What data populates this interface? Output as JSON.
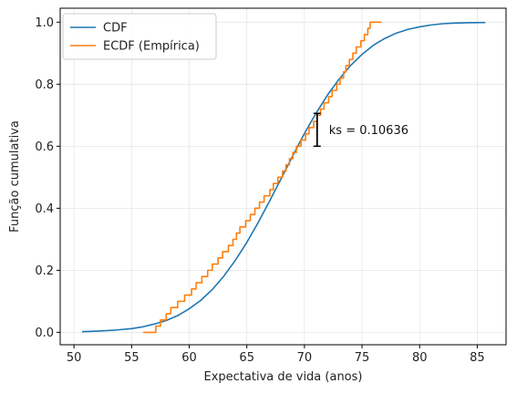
{
  "chart_data": {
    "type": "line",
    "xlabel": "Expectativa de vida (anos)",
    "ylabel": "Função cumulativa",
    "xlim": [
      48.8,
      87.5
    ],
    "ylim": [
      -0.04,
      1.045
    ],
    "xticks": [
      50,
      55,
      60,
      65,
      70,
      75,
      80,
      85
    ],
    "yticks": [
      0.0,
      0.2,
      0.4,
      0.6,
      0.8,
      1.0
    ],
    "x_tick_labels": [
      "50",
      "55",
      "60",
      "65",
      "70",
      "75",
      "80",
      "85"
    ],
    "y_tick_labels": [
      "0.0",
      "0.2",
      "0.4",
      "0.6",
      "0.8",
      "1.0"
    ],
    "grid": true,
    "legend_position": "top-left",
    "series": [
      {
        "name": "CDF",
        "kind": "line",
        "color": "#1f77b4",
        "x": [
          50.7,
          52,
          53.5,
          55,
          56,
          57,
          58,
          59,
          60,
          61,
          62,
          63,
          64,
          65,
          66,
          67,
          68,
          69,
          70,
          71,
          72,
          73,
          74,
          75,
          76,
          77,
          78,
          79,
          80,
          81,
          82,
          83,
          84,
          85.7
        ],
        "y": [
          0.002,
          0.004,
          0.007,
          0.012,
          0.018,
          0.027,
          0.038,
          0.054,
          0.076,
          0.103,
          0.138,
          0.181,
          0.232,
          0.29,
          0.355,
          0.425,
          0.497,
          0.57,
          0.641,
          0.706,
          0.765,
          0.816,
          0.86,
          0.896,
          0.926,
          0.948,
          0.965,
          0.977,
          0.985,
          0.991,
          0.995,
          0.997,
          0.998,
          0.999
        ]
      },
      {
        "name": "ECDF (Empírica)",
        "kind": "step",
        "color": "#ff7f0e",
        "x": [
          56,
          57.1,
          57.5,
          58,
          58.4,
          59,
          59.6,
          60.2,
          60.6,
          61.1,
          61.6,
          62,
          62.5,
          62.9,
          63.4,
          63.8,
          64.1,
          64.4,
          64.9,
          65.3,
          65.7,
          66.1,
          66.5,
          67,
          67.3,
          67.7,
          68.1,
          68.4,
          68.7,
          69,
          69.3,
          69.7,
          70.1,
          70.4,
          70.8,
          71.1,
          71.4,
          71.7,
          72.1,
          72.4,
          72.8,
          73.1,
          73.4,
          73.6,
          73.9,
          74.2,
          74.5,
          74.9,
          75.2,
          75.5,
          75.7,
          76.7
        ],
        "y": [
          0.0,
          0.02,
          0.04,
          0.06,
          0.08,
          0.1,
          0.12,
          0.14,
          0.16,
          0.18,
          0.2,
          0.22,
          0.24,
          0.26,
          0.28,
          0.3,
          0.32,
          0.34,
          0.36,
          0.38,
          0.4,
          0.42,
          0.44,
          0.46,
          0.48,
          0.5,
          0.52,
          0.54,
          0.56,
          0.58,
          0.6,
          0.62,
          0.64,
          0.66,
          0.68,
          0.7,
          0.72,
          0.74,
          0.76,
          0.78,
          0.8,
          0.82,
          0.84,
          0.86,
          0.88,
          0.9,
          0.92,
          0.94,
          0.96,
          0.98,
          1.0,
          1.0
        ]
      }
    ],
    "annotation": {
      "text": "ks = 0.10636",
      "x": 71.1,
      "y_low": 0.6,
      "y_high": 0.706,
      "color": "#000000"
    }
  }
}
